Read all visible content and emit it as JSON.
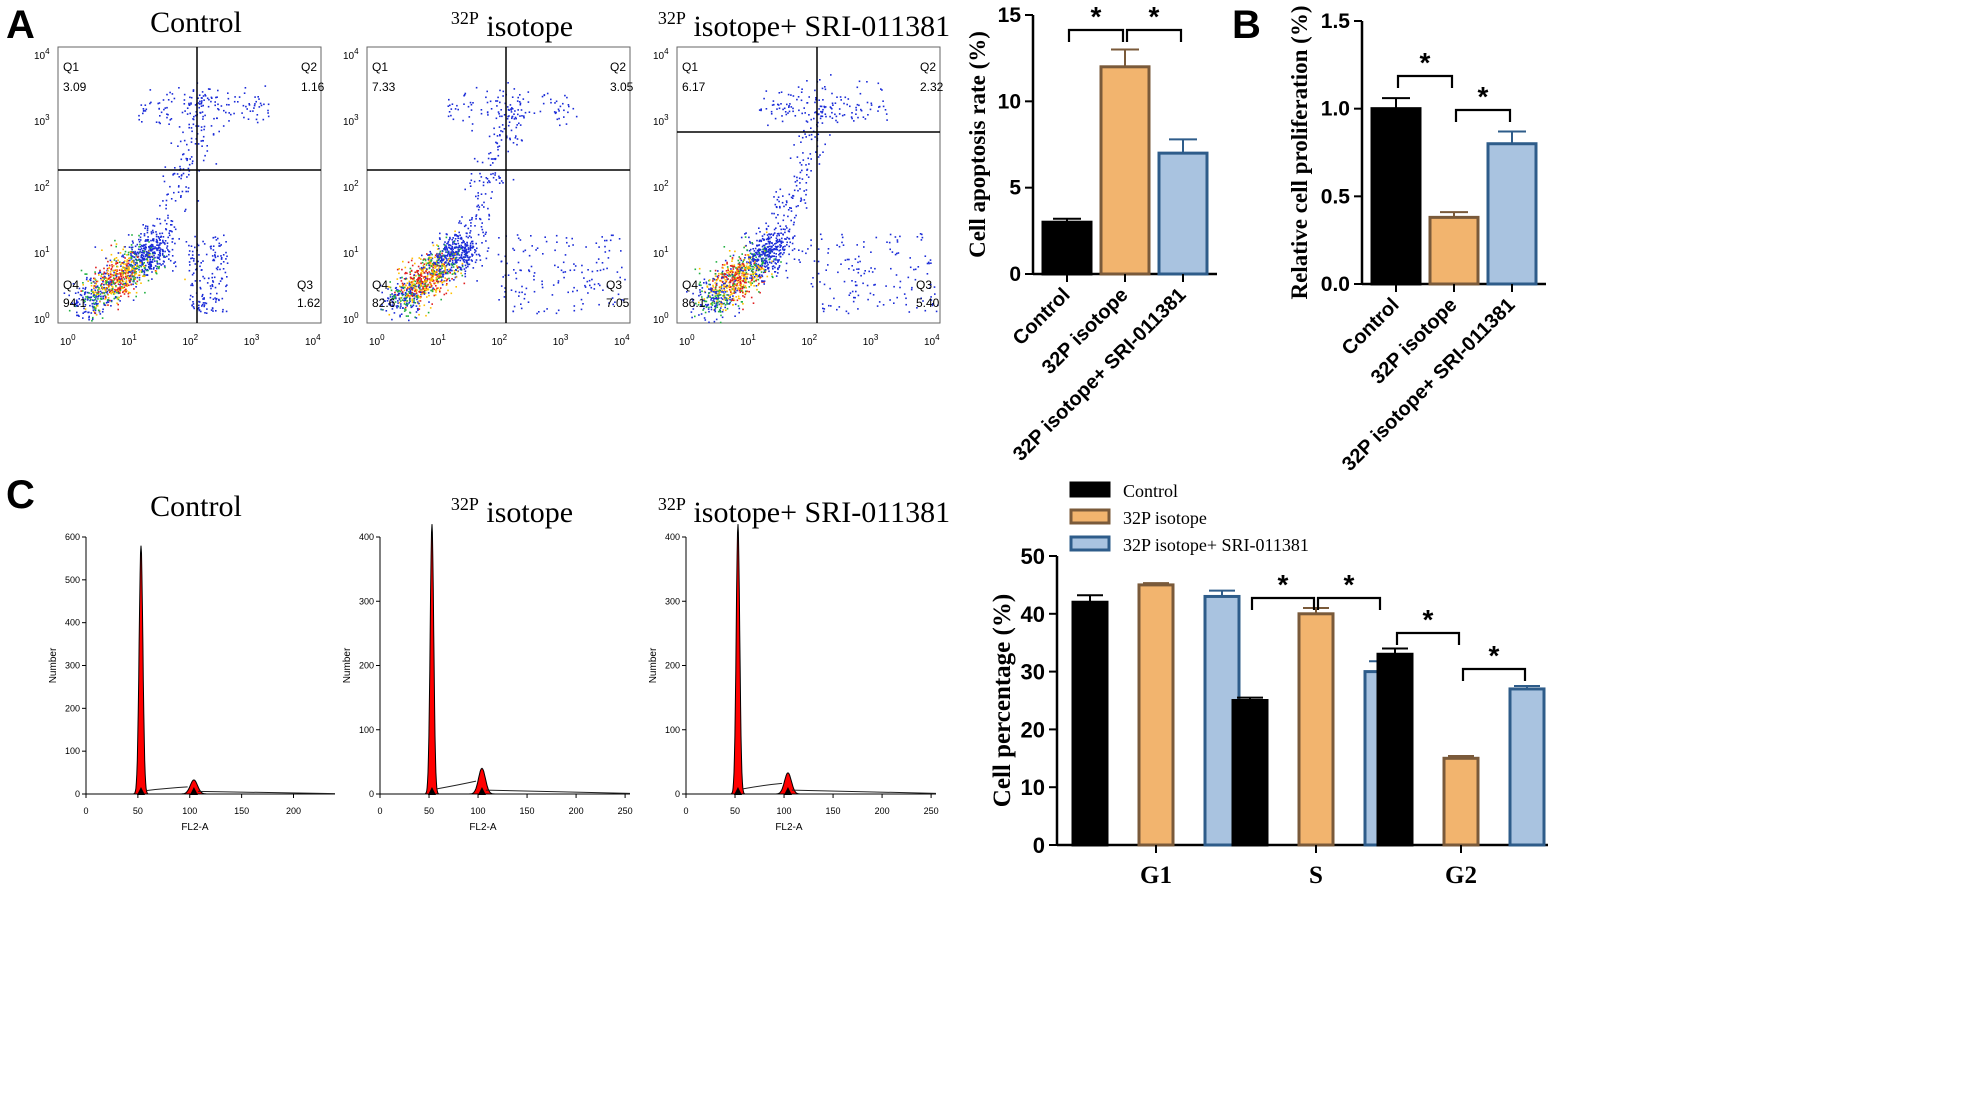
{
  "panel_letters": [
    "A",
    "B",
    "C"
  ],
  "colors": {
    "control": "#000000",
    "p32": "#F2B46E",
    "p32_edge": "#7A5A3A",
    "combo": "#A9C3E0",
    "combo_edge": "#2E5C8A",
    "flow_dot": "#1A2BD8",
    "hist_fill": "#FF0000"
  },
  "flow_panels": [
    {
      "title": "Control",
      "title_sup": "",
      "gx": 197,
      "gy": 170,
      "q1": "3.09",
      "q2": "1.16",
      "q3": "1.62",
      "q4": "94.1"
    },
    {
      "title": " isotope",
      "title_sup": "32P",
      "gx": 506,
      "gy": 170,
      "q1": "7.33",
      "q2": "3.05",
      "q3": "7.05",
      "q4": "82.6"
    },
    {
      "title": " isotope+ SRI-011381",
      "title_sup": "32P",
      "gx": 817,
      "gy": 132,
      "q1": "6.17",
      "q2": "2.32",
      "q3": "5.40",
      "q4": "86.1"
    }
  ],
  "quadrant_labels": [
    "Q1",
    "Q2",
    "Q3",
    "Q4"
  ],
  "flow_tick_labels": [
    "10",
    "10",
    "10",
    "10",
    "10"
  ],
  "flow_tick_exps": [
    "0",
    "1",
    "2",
    "3",
    "4"
  ],
  "hist_panels": [
    {
      "title": "Control",
      "title_sup": "",
      "yticks": [
        "0",
        "100",
        "200",
        "300",
        "400",
        "500",
        "600"
      ],
      "xticks": [
        "0",
        "50",
        "100",
        "150",
        "200"
      ],
      "peak_g1": 580,
      "peak_g2": 33
    },
    {
      "title": " isotope",
      "title_sup": "32P",
      "yticks": [
        "0",
        "100",
        "200",
        "300",
        "400"
      ],
      "xticks": [
        "0",
        "50",
        "100",
        "150",
        "200",
        "250"
      ],
      "peak_g1": 420,
      "peak_g2": 40
    },
    {
      "title": " isotope+ SRI-011381",
      "title_sup": "32P",
      "yticks": [
        "0",
        "100",
        "200",
        "300",
        "400"
      ],
      "xticks": [
        "0",
        "50",
        "100",
        "150",
        "200",
        "250"
      ],
      "peak_g1": 420,
      "peak_g2": 33
    }
  ],
  "hist_ylabel": "Number",
  "hist_xlabel": "FL2-A",
  "chart_data": [
    {
      "type": "bar",
      "categories": [
        "Control",
        "32P isotope",
        "32P isotope+ SRI-011381"
      ],
      "values": [
        3.0,
        12.0,
        7.0
      ],
      "errors": [
        0.2,
        1.0,
        0.8
      ],
      "ylabel": "Cell apoptosis rate (%)",
      "ylim": [
        0,
        15
      ],
      "yticks": [
        0,
        5,
        10,
        15
      ],
      "significance": [
        [
          "Control",
          "32P isotope",
          "*"
        ],
        [
          "32P isotope",
          "32P isotope+ SRI-011381",
          "*"
        ]
      ]
    },
    {
      "type": "bar",
      "categories": [
        "Control",
        "32P isotope",
        "32P isotope+ SRI-011381"
      ],
      "values": [
        1.0,
        0.38,
        0.8
      ],
      "errors": [
        0.06,
        0.03,
        0.07
      ],
      "ylabel": "Relative cell proliferation (%)",
      "ylim": [
        0,
        1.5
      ],
      "yticks": [
        "0.0",
        "0.5",
        "1.0",
        "1.5"
      ],
      "significance": [
        [
          "Control",
          "32P isotope",
          "*"
        ],
        [
          "32P isotope",
          "32P isotope+ SRI-011381",
          "*"
        ]
      ]
    },
    {
      "type": "bar",
      "categories": [
        "G1",
        "S",
        "G2"
      ],
      "series": [
        {
          "name": "Control",
          "values": [
            42,
            25,
            33
          ],
          "errors": [
            1.2,
            0.5,
            1.0
          ]
        },
        {
          "name": "32P isotope",
          "values": [
            45,
            40,
            15
          ],
          "errors": [
            0.3,
            1.0,
            0.4
          ]
        },
        {
          "name": "32P isotope+ SRI-011381",
          "values": [
            43,
            30,
            27
          ],
          "errors": [
            1.0,
            1.8,
            0.5
          ]
        }
      ],
      "ylabel": "Cell percentage (%)",
      "ylim": [
        0,
        50
      ],
      "yticks": [
        0,
        10,
        20,
        30,
        40,
        50
      ],
      "legend": "top",
      "significance": [
        [
          "S",
          "Control",
          "32P isotope",
          "*"
        ],
        [
          "S",
          "32P isotope",
          "32P isotope+ SRI-011381",
          "*"
        ],
        [
          "G2",
          "Control",
          "32P isotope",
          "*"
        ],
        [
          "G2",
          "32P isotope",
          "32P isotope+ SRI-011381",
          "*"
        ]
      ]
    }
  ]
}
